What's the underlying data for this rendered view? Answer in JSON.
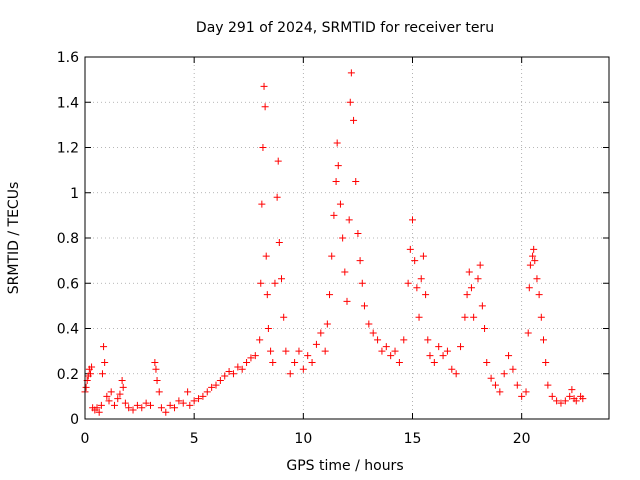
{
  "chart_data": {
    "type": "scatter",
    "title": "Day 291 of 2024, SRMTID for receiver teru",
    "xlabel": "GPS time / hours",
    "ylabel": "SRMTID / TECUs",
    "xlim": [
      0,
      24
    ],
    "ylim": [
      0,
      1.6
    ],
    "xticks": [
      0,
      5,
      10,
      15,
      20
    ],
    "yticks": [
      0,
      0.2,
      0.4,
      0.6,
      0.8,
      1,
      1.2,
      1.4,
      1.6
    ],
    "ytick_labels": [
      "0",
      "0.2",
      "0.4",
      "0.6",
      "0.8",
      "1",
      "1.2",
      "1.4",
      "1.6"
    ],
    "grid": true,
    "marker": "+",
    "color": "#ff0000",
    "series": [
      {
        "name": "SRMTID",
        "points": [
          [
            0.0,
            0.12
          ],
          [
            0.05,
            0.14
          ],
          [
            0.1,
            0.17
          ],
          [
            0.15,
            0.19
          ],
          [
            0.2,
            0.22
          ],
          [
            0.25,
            0.2
          ],
          [
            0.3,
            0.23
          ],
          [
            0.35,
            0.05
          ],
          [
            0.45,
            0.04
          ],
          [
            0.55,
            0.05
          ],
          [
            0.65,
            0.03
          ],
          [
            0.75,
            0.06
          ],
          [
            0.8,
            0.2
          ],
          [
            0.85,
            0.32
          ],
          [
            0.9,
            0.25
          ],
          [
            1.0,
            0.1
          ],
          [
            1.1,
            0.08
          ],
          [
            1.2,
            0.12
          ],
          [
            1.35,
            0.06
          ],
          [
            1.5,
            0.09
          ],
          [
            1.6,
            0.11
          ],
          [
            1.7,
            0.17
          ],
          [
            1.75,
            0.14
          ],
          [
            1.85,
            0.07
          ],
          [
            2.0,
            0.05
          ],
          [
            2.2,
            0.04
          ],
          [
            2.4,
            0.06
          ],
          [
            2.6,
            0.05
          ],
          [
            2.8,
            0.07
          ],
          [
            3.0,
            0.06
          ],
          [
            3.2,
            0.25
          ],
          [
            3.25,
            0.22
          ],
          [
            3.3,
            0.17
          ],
          [
            3.4,
            0.12
          ],
          [
            3.5,
            0.05
          ],
          [
            3.7,
            0.03
          ],
          [
            3.9,
            0.06
          ],
          [
            4.1,
            0.05
          ],
          [
            4.3,
            0.08
          ],
          [
            4.5,
            0.07
          ],
          [
            4.7,
            0.12
          ],
          [
            4.8,
            0.06
          ],
          [
            5.0,
            0.08
          ],
          [
            5.2,
            0.09
          ],
          [
            5.4,
            0.1
          ],
          [
            5.6,
            0.12
          ],
          [
            5.8,
            0.14
          ],
          [
            6.0,
            0.15
          ],
          [
            6.2,
            0.17
          ],
          [
            6.4,
            0.19
          ],
          [
            6.6,
            0.21
          ],
          [
            6.8,
            0.2
          ],
          [
            7.0,
            0.23
          ],
          [
            7.2,
            0.22
          ],
          [
            7.4,
            0.25
          ],
          [
            7.6,
            0.27
          ],
          [
            7.8,
            0.28
          ],
          [
            8.0,
            0.35
          ],
          [
            8.05,
            0.6
          ],
          [
            8.1,
            0.95
          ],
          [
            8.15,
            1.2
          ],
          [
            8.2,
            1.47
          ],
          [
            8.25,
            1.38
          ],
          [
            8.3,
            0.72
          ],
          [
            8.35,
            0.55
          ],
          [
            8.4,
            0.4
          ],
          [
            8.5,
            0.3
          ],
          [
            8.6,
            0.25
          ],
          [
            8.7,
            0.6
          ],
          [
            8.8,
            0.98
          ],
          [
            8.85,
            1.14
          ],
          [
            8.9,
            0.78
          ],
          [
            9.0,
            0.62
          ],
          [
            9.1,
            0.45
          ],
          [
            9.2,
            0.3
          ],
          [
            9.4,
            0.2
          ],
          [
            9.6,
            0.25
          ],
          [
            9.8,
            0.3
          ],
          [
            10.0,
            0.22
          ],
          [
            10.2,
            0.28
          ],
          [
            10.4,
            0.25
          ],
          [
            10.6,
            0.33
          ],
          [
            10.8,
            0.38
          ],
          [
            11.0,
            0.3
          ],
          [
            11.1,
            0.42
          ],
          [
            11.2,
            0.55
          ],
          [
            11.3,
            0.72
          ],
          [
            11.4,
            0.9
          ],
          [
            11.5,
            1.05
          ],
          [
            11.55,
            1.22
          ],
          [
            11.6,
            1.12
          ],
          [
            11.7,
            0.95
          ],
          [
            11.8,
            0.8
          ],
          [
            11.9,
            0.65
          ],
          [
            12.0,
            0.52
          ],
          [
            12.1,
            0.88
          ],
          [
            12.15,
            1.4
          ],
          [
            12.2,
            1.53
          ],
          [
            12.3,
            1.32
          ],
          [
            12.4,
            1.05
          ],
          [
            12.5,
            0.82
          ],
          [
            12.6,
            0.7
          ],
          [
            12.7,
            0.6
          ],
          [
            12.8,
            0.5
          ],
          [
            13.0,
            0.42
          ],
          [
            13.2,
            0.38
          ],
          [
            13.4,
            0.35
          ],
          [
            13.6,
            0.3
          ],
          [
            13.8,
            0.32
          ],
          [
            14.0,
            0.28
          ],
          [
            14.2,
            0.3
          ],
          [
            14.4,
            0.25
          ],
          [
            14.6,
            0.35
          ],
          [
            14.8,
            0.6
          ],
          [
            14.9,
            0.75
          ],
          [
            15.0,
            0.88
          ],
          [
            15.1,
            0.7
          ],
          [
            15.2,
            0.58
          ],
          [
            15.3,
            0.45
          ],
          [
            15.4,
            0.62
          ],
          [
            15.5,
            0.72
          ],
          [
            15.6,
            0.55
          ],
          [
            15.7,
            0.35
          ],
          [
            15.8,
            0.28
          ],
          [
            16.0,
            0.25
          ],
          [
            16.2,
            0.32
          ],
          [
            16.4,
            0.28
          ],
          [
            16.6,
            0.3
          ],
          [
            16.8,
            0.22
          ],
          [
            17.0,
            0.2
          ],
          [
            17.2,
            0.32
          ],
          [
            17.4,
            0.45
          ],
          [
            17.5,
            0.55
          ],
          [
            17.6,
            0.65
          ],
          [
            17.7,
            0.58
          ],
          [
            17.8,
            0.45
          ],
          [
            18.0,
            0.62
          ],
          [
            18.1,
            0.68
          ],
          [
            18.2,
            0.5
          ],
          [
            18.3,
            0.4
          ],
          [
            18.4,
            0.25
          ],
          [
            18.6,
            0.18
          ],
          [
            18.8,
            0.15
          ],
          [
            19.0,
            0.12
          ],
          [
            19.2,
            0.2
          ],
          [
            19.4,
            0.28
          ],
          [
            19.6,
            0.22
          ],
          [
            19.8,
            0.15
          ],
          [
            20.0,
            0.1
          ],
          [
            20.2,
            0.12
          ],
          [
            20.3,
            0.38
          ],
          [
            20.35,
            0.58
          ],
          [
            20.4,
            0.68
          ],
          [
            20.5,
            0.72
          ],
          [
            20.55,
            0.75
          ],
          [
            20.6,
            0.7
          ],
          [
            20.7,
            0.62
          ],
          [
            20.8,
            0.55
          ],
          [
            20.9,
            0.45
          ],
          [
            21.0,
            0.35
          ],
          [
            21.1,
            0.25
          ],
          [
            21.2,
            0.15
          ],
          [
            21.4,
            0.1
          ],
          [
            21.6,
            0.08
          ],
          [
            21.8,
            0.07
          ],
          [
            22.0,
            0.08
          ],
          [
            22.2,
            0.1
          ],
          [
            22.3,
            0.13
          ],
          [
            22.4,
            0.09
          ],
          [
            22.5,
            0.08
          ],
          [
            22.7,
            0.1
          ],
          [
            22.8,
            0.09
          ]
        ]
      }
    ]
  }
}
